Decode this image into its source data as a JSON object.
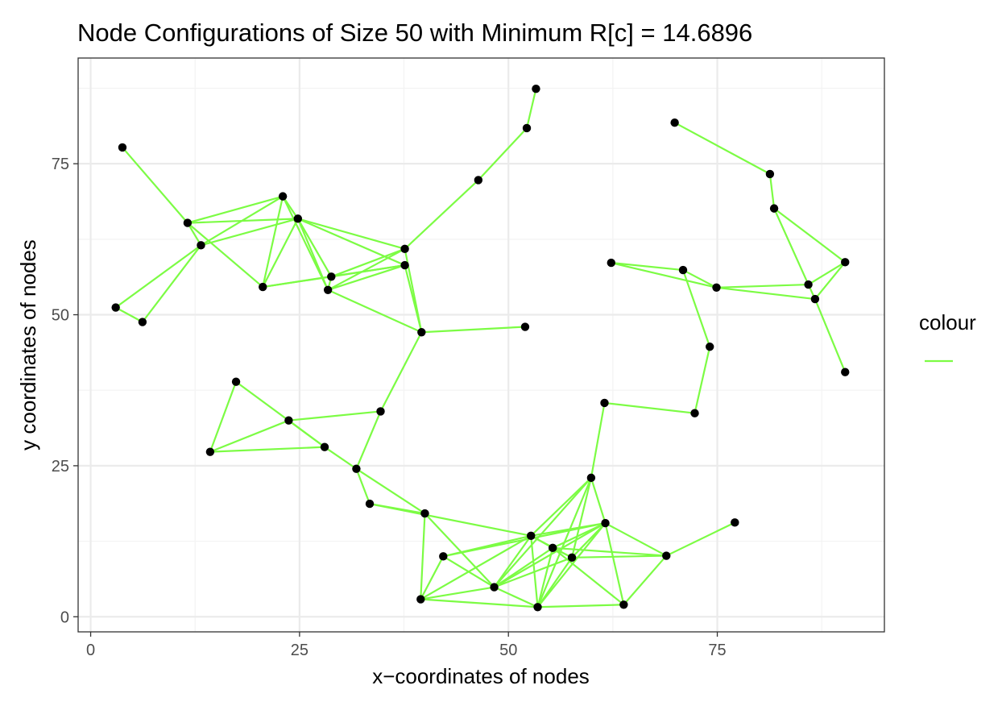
{
  "chart_data": {
    "type": "scatter",
    "title": "Node Configurations of Size 50 with Minimum R[c] = 14.6896",
    "xlabel": "x−coordinates of nodes",
    "ylabel": "y coordinates of nodes",
    "xlim": [
      -1.5,
      95
    ],
    "ylim": [
      -2.5,
      92.5
    ],
    "x_ticks": [
      0,
      25,
      50,
      75
    ],
    "x_tick_labels": [
      "0",
      "25",
      "50",
      "75"
    ],
    "y_ticks": [
      0,
      25,
      50,
      75
    ],
    "y_tick_labels": [
      "0",
      "25",
      "50",
      "75"
    ],
    "grid": true,
    "legend": {
      "title": "colour",
      "placement": "right",
      "entries": [
        {
          "color": "#7CFC44"
        }
      ]
    },
    "edge_color": "#7CFC44",
    "node_color": "#000000",
    "nodes": [
      [
        3.8,
        77.7
      ],
      [
        11.6,
        65.2
      ],
      [
        13.2,
        61.5
      ],
      [
        3.0,
        51.2
      ],
      [
        6.2,
        48.8
      ],
      [
        23.0,
        69.6
      ],
      [
        24.8,
        65.9
      ],
      [
        20.6,
        54.6
      ],
      [
        28.8,
        56.3
      ],
      [
        28.4,
        54.1
      ],
      [
        37.6,
        60.9
      ],
      [
        37.6,
        58.2
      ],
      [
        39.6,
        47.1
      ],
      [
        52.0,
        48.0
      ],
      [
        46.4,
        72.3
      ],
      [
        52.2,
        80.9
      ],
      [
        53.3,
        87.4
      ],
      [
        17.4,
        38.9
      ],
      [
        14.3,
        27.3
      ],
      [
        23.7,
        32.5
      ],
      [
        28.0,
        28.1
      ],
      [
        34.7,
        34.0
      ],
      [
        31.8,
        24.5
      ],
      [
        33.4,
        18.7
      ],
      [
        40.0,
        17.1
      ],
      [
        42.2,
        10.0
      ],
      [
        39.5,
        2.9
      ],
      [
        48.3,
        4.9
      ],
      [
        52.7,
        13.4
      ],
      [
        53.5,
        1.6
      ],
      [
        55.3,
        11.4
      ],
      [
        57.6,
        9.8
      ],
      [
        59.9,
        23.0
      ],
      [
        61.6,
        15.5
      ],
      [
        63.8,
        2.0
      ],
      [
        68.9,
        10.1
      ],
      [
        77.1,
        15.6
      ],
      [
        61.5,
        35.4
      ],
      [
        72.3,
        33.7
      ],
      [
        74.1,
        44.7
      ],
      [
        70.9,
        57.4
      ],
      [
        74.9,
        54.5
      ],
      [
        62.3,
        58.6
      ],
      [
        85.9,
        55.0
      ],
      [
        86.7,
        52.6
      ],
      [
        90.3,
        58.7
      ],
      [
        90.3,
        40.5
      ],
      [
        81.8,
        67.6
      ],
      [
        81.3,
        73.3
      ],
      [
        69.9,
        81.8
      ]
    ],
    "edges": [
      [
        0,
        1
      ],
      [
        1,
        2
      ],
      [
        1,
        5
      ],
      [
        1,
        6
      ],
      [
        1,
        7
      ],
      [
        2,
        3
      ],
      [
        2,
        4
      ],
      [
        2,
        5
      ],
      [
        2,
        6
      ],
      [
        3,
        4
      ],
      [
        5,
        6
      ],
      [
        5,
        7
      ],
      [
        5,
        9
      ],
      [
        6,
        7
      ],
      [
        6,
        8
      ],
      [
        6,
        9
      ],
      [
        6,
        10
      ],
      [
        6,
        11
      ],
      [
        7,
        8
      ],
      [
        7,
        11
      ],
      [
        8,
        9
      ],
      [
        8,
        10
      ],
      [
        9,
        10
      ],
      [
        9,
        11
      ],
      [
        8,
        11
      ],
      [
        9,
        12
      ],
      [
        10,
        12
      ],
      [
        11,
        12
      ],
      [
        10,
        14
      ],
      [
        14,
        15
      ],
      [
        15,
        16
      ],
      [
        12,
        13
      ],
      [
        12,
        21
      ],
      [
        17,
        18
      ],
      [
        17,
        20
      ],
      [
        18,
        19
      ],
      [
        18,
        20
      ],
      [
        19,
        20
      ],
      [
        19,
        21
      ],
      [
        20,
        22
      ],
      [
        21,
        22
      ],
      [
        22,
        23
      ],
      [
        22,
        24
      ],
      [
        23,
        24
      ],
      [
        23,
        28
      ],
      [
        24,
        26
      ],
      [
        24,
        27
      ],
      [
        25,
        26
      ],
      [
        25,
        27
      ],
      [
        25,
        28
      ],
      [
        25,
        33
      ],
      [
        26,
        27
      ],
      [
        26,
        28
      ],
      [
        26,
        29
      ],
      [
        27,
        28
      ],
      [
        27,
        29
      ],
      [
        27,
        30
      ],
      [
        27,
        31
      ],
      [
        27,
        32
      ],
      [
        27,
        33
      ],
      [
        28,
        29
      ],
      [
        28,
        30
      ],
      [
        28,
        31
      ],
      [
        28,
        32
      ],
      [
        28,
        33
      ],
      [
        29,
        30
      ],
      [
        29,
        31
      ],
      [
        29,
        32
      ],
      [
        29,
        33
      ],
      [
        29,
        34
      ],
      [
        30,
        31
      ],
      [
        30,
        33
      ],
      [
        30,
        34
      ],
      [
        30,
        35
      ],
      [
        31,
        32
      ],
      [
        31,
        33
      ],
      [
        31,
        35
      ],
      [
        32,
        33
      ],
      [
        32,
        37
      ],
      [
        33,
        34
      ],
      [
        33,
        35
      ],
      [
        34,
        35
      ],
      [
        35,
        36
      ],
      [
        37,
        38
      ],
      [
        38,
        39
      ],
      [
        39,
        40
      ],
      [
        40,
        41
      ],
      [
        40,
        42
      ],
      [
        41,
        42
      ],
      [
        41,
        43
      ],
      [
        41,
        44
      ],
      [
        43,
        44
      ],
      [
        43,
        45
      ],
      [
        44,
        45
      ],
      [
        44,
        46
      ],
      [
        43,
        47
      ],
      [
        47,
        48
      ],
      [
        47,
        45
      ],
      [
        48,
        49
      ]
    ]
  }
}
